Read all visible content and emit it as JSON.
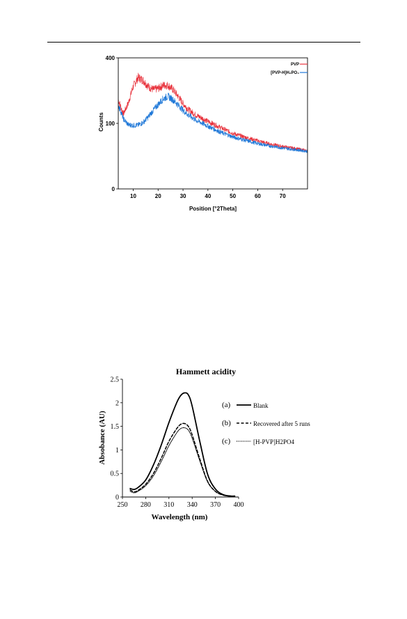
{
  "chart_data": [
    {
      "type": "line",
      "title": "",
      "xlabel": "Position [°2Theta]",
      "ylabel": "Counts",
      "xlim": [
        4,
        80
      ],
      "ylim": [
        0,
        400
      ],
      "y_scale": "sqrt",
      "x_ticks": [
        10,
        20,
        30,
        40,
        50,
        60,
        70
      ],
      "y_ticks": [
        0,
        100,
        400
      ],
      "legend_position": "top-right",
      "grid": false,
      "series": [
        {
          "name": "PVP",
          "color": "#e8323c",
          "points": [
            [
              4,
              185
            ],
            [
              6,
              130
            ],
            [
              8,
              170
            ],
            [
              10,
              245
            ],
            [
              12,
              290
            ],
            [
              14,
              275
            ],
            [
              16,
              245
            ],
            [
              18,
              230
            ],
            [
              20,
              235
            ],
            [
              22,
              250
            ],
            [
              24,
              250
            ],
            [
              26,
              230
            ],
            [
              28,
              200
            ],
            [
              30,
              170
            ],
            [
              32,
              148
            ],
            [
              35,
              128
            ],
            [
              40,
              106
            ],
            [
              45,
              88
            ],
            [
              50,
              72
            ],
            [
              55,
              62
            ],
            [
              60,
              54
            ],
            [
              65,
              47
            ],
            [
              70,
              42
            ],
            [
              75,
              38
            ],
            [
              80,
              34
            ]
          ]
        },
        {
          "name": "[PVP-H]H₂PO₄",
          "color": "#1f78d8",
          "points": [
            [
              4,
              165
            ],
            [
              6,
              115
            ],
            [
              8,
              96
            ],
            [
              10,
              94
            ],
            [
              12,
              95
            ],
            [
              14,
              103
            ],
            [
              16,
              120
            ],
            [
              18,
              143
            ],
            [
              20,
              166
            ],
            [
              22,
              189
            ],
            [
              24,
              200
            ],
            [
              26,
              185
            ],
            [
              28,
              165
            ],
            [
              30,
              144
            ],
            [
              32,
              128
            ],
            [
              35,
              111
            ],
            [
              40,
              92
            ],
            [
              45,
              75
            ],
            [
              50,
              63
            ],
            [
              55,
              55
            ],
            [
              60,
              48
            ],
            [
              65,
              43
            ],
            [
              70,
              39
            ],
            [
              75,
              36
            ],
            [
              80,
              33
            ]
          ]
        }
      ]
    },
    {
      "type": "line",
      "title": "Hammett acidity",
      "xlabel": "Wavelength (nm)",
      "ylabel": "Absobance (AU)",
      "xlim": [
        250,
        400
      ],
      "ylim": [
        0,
        2.5
      ],
      "x_ticks": [
        250,
        280,
        310,
        340,
        370,
        400
      ],
      "y_ticks": [
        0,
        0.5,
        1,
        1.5,
        2,
        2.5
      ],
      "legend_position": "right",
      "grid": false,
      "series": [
        {
          "name": "Blank",
          "tag": "(a)",
          "style": "solid",
          "points": [
            [
              260,
              0.18
            ],
            [
              265,
              0.16
            ],
            [
              270,
              0.2
            ],
            [
              280,
              0.36
            ],
            [
              290,
              0.68
            ],
            [
              300,
              1.1
            ],
            [
              310,
              1.58
            ],
            [
              320,
              2.0
            ],
            [
              325,
              2.15
            ],
            [
              330,
              2.21
            ],
            [
              335,
              2.17
            ],
            [
              340,
              1.93
            ],
            [
              350,
              1.17
            ],
            [
              360,
              0.48
            ],
            [
              370,
              0.17
            ],
            [
              380,
              0.05
            ],
            [
              390,
              0.02
            ],
            [
              395,
              0.02
            ]
          ]
        },
        {
          "name": "Recovered after 5 runs",
          "tag": "(b)",
          "style": "dashed",
          "points": [
            [
              260,
              0.15
            ],
            [
              265,
              0.11
            ],
            [
              270,
              0.14
            ],
            [
              280,
              0.27
            ],
            [
              290,
              0.5
            ],
            [
              300,
              0.82
            ],
            [
              310,
              1.18
            ],
            [
              320,
              1.45
            ],
            [
              325,
              1.54
            ],
            [
              330,
              1.56
            ],
            [
              335,
              1.5
            ],
            [
              340,
              1.32
            ],
            [
              350,
              0.8
            ],
            [
              360,
              0.33
            ],
            [
              370,
              0.12
            ],
            [
              380,
              0.04
            ],
            [
              390,
              0.02
            ]
          ]
        },
        {
          "name": "[H-PVP]H2PO4",
          "tag": "(c)",
          "style": "dotted",
          "points": [
            [
              260,
              0.12
            ],
            [
              265,
              0.09
            ],
            [
              270,
              0.12
            ],
            [
              280,
              0.24
            ],
            [
              290,
              0.45
            ],
            [
              300,
              0.75
            ],
            [
              310,
              1.09
            ],
            [
              320,
              1.36
            ],
            [
              325,
              1.45
            ],
            [
              330,
              1.47
            ],
            [
              335,
              1.42
            ],
            [
              340,
              1.25
            ],
            [
              350,
              0.76
            ],
            [
              360,
              0.32
            ],
            [
              370,
              0.12
            ],
            [
              380,
              0.04
            ],
            [
              390,
              0.02
            ]
          ]
        }
      ]
    }
  ]
}
